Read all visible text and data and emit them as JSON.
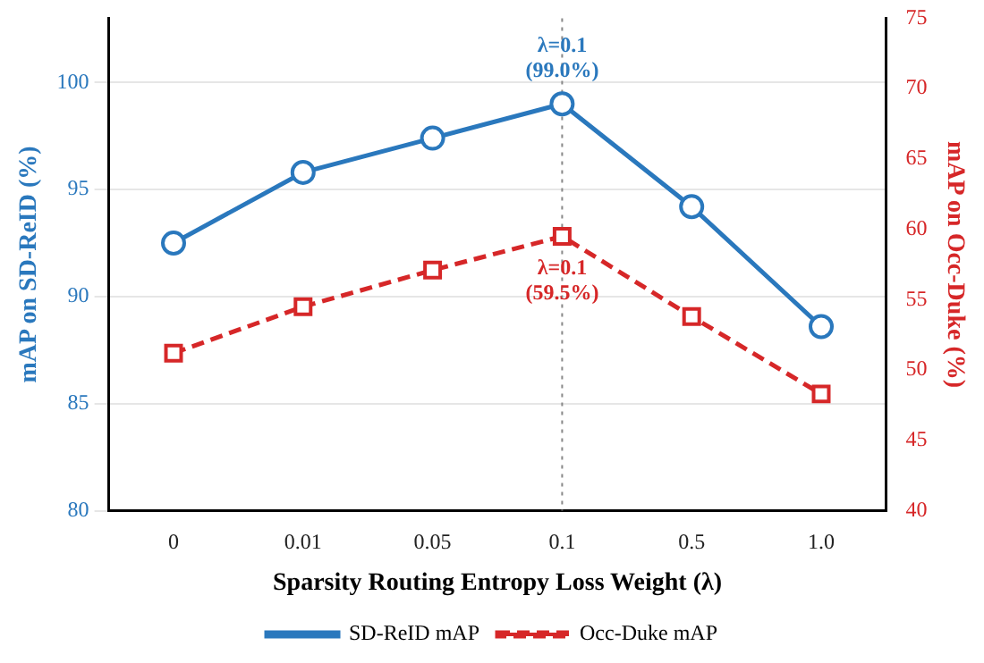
{
  "chart_data": {
    "type": "line",
    "xlabel": "Sparsity Routing Entropy Loss Weight (λ)",
    "ylabel": "mAP on SD-ReID (%)",
    "y2label": "mAP on Occ-Duke (%)",
    "categories": [
      "0",
      "0.01",
      "0.05",
      "0.1",
      "0.5",
      "1.0"
    ],
    "series": [
      {
        "name": "SD-ReID mAP",
        "color": "#2a78bd",
        "values": [
          92.5,
          95.8,
          97.4,
          99.0,
          94.2,
          88.6
        ],
        "marker": "circle",
        "line_style": "solid"
      },
      {
        "name": "Occ-Duke mAP",
        "color": "#d62728",
        "values": [
          51.2,
          54.5,
          57.1,
          59.5,
          53.8,
          48.3
        ],
        "marker": "square",
        "line_style": "dashed",
        "axis": "y2"
      }
    ],
    "ylim": [
      80,
      103
    ],
    "yticks": [
      80,
      85,
      90,
      95,
      100
    ],
    "y2lim": [
      40,
      75
    ],
    "y2ticks": [
      40,
      45,
      50,
      55,
      60,
      65,
      70,
      75
    ],
    "ref_lines": [
      {
        "axis": "x",
        "value": "0.1",
        "color": "#888888",
        "line_style": "dotted"
      }
    ],
    "annotations": [
      {
        "text": "λ=0.1\n(99.0%)",
        "x": "0.1",
        "y": 99.0
      },
      "λ=0.1\n(59.5%)"
    ],
    "grid": "y",
    "legend": "bottom"
  }
}
